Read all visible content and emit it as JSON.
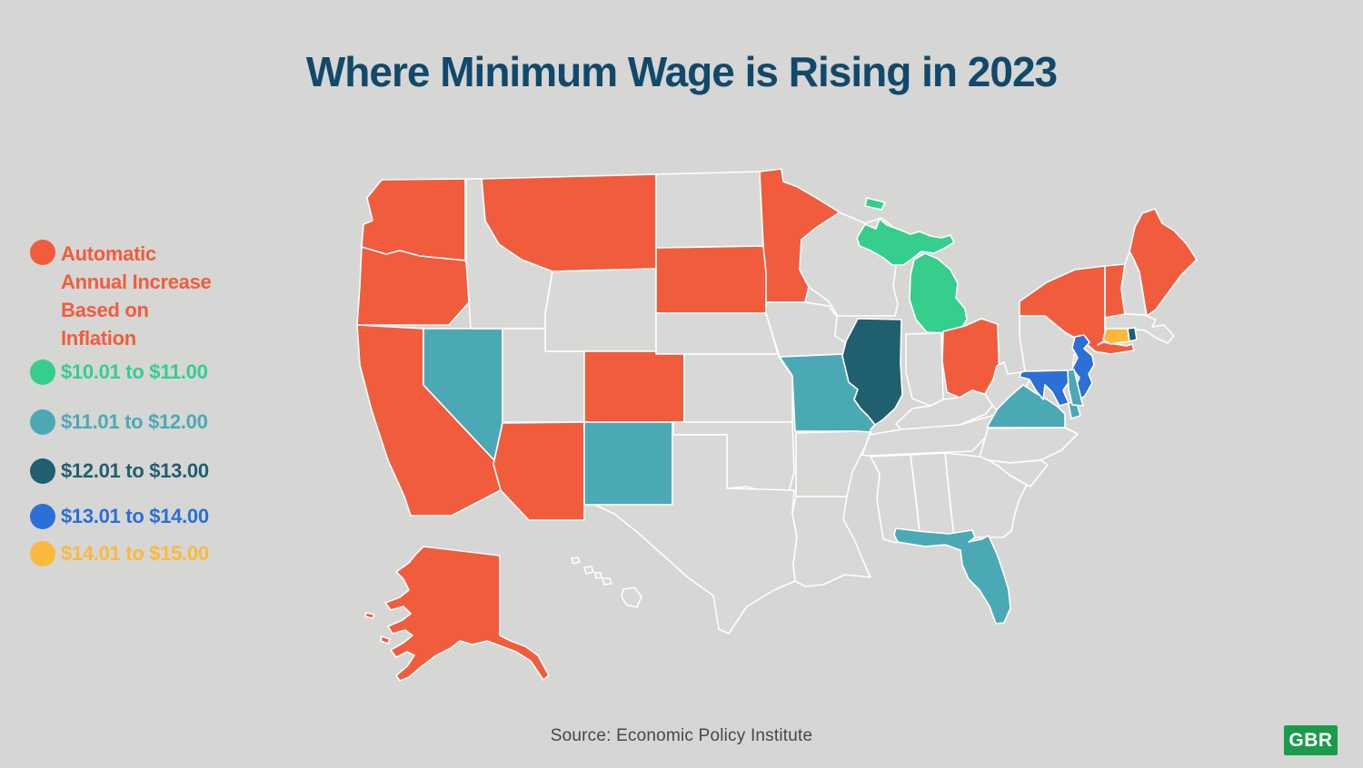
{
  "title": "Where Minimum Wage is Rising in 2023",
  "source": "Source: Economic Policy Institute",
  "logo_text": "GBR",
  "colors": {
    "background": "#D6D6D4",
    "title_text": "#11496B",
    "state_border": "#FFFFFF",
    "no_increase_state": "#D8D8D6",
    "source_text": "#474747",
    "logo_bg": "#1A9C4D",
    "logo_text": "#FFFFFF"
  },
  "chart_data": {
    "type": "choropleth",
    "region": "United States",
    "title": "Where Minimum Wage is Rising in 2023",
    "source": "Source: Economic Policy Institute",
    "legend_position": "left",
    "categories": [
      {
        "key": "auto",
        "label": "Automatic Annual Increase Based on Inflation",
        "lines": [
          "Automatic",
          "Annual Increase",
          "Based on",
          "Inflation"
        ],
        "color": "#F15C3D",
        "states": [
          "AK",
          "AZ",
          "CA",
          "CO",
          "ME",
          "MN",
          "MT",
          "NY",
          "OH",
          "OR",
          "SD",
          "VT",
          "WA"
        ]
      },
      {
        "key": "w10",
        "label": "$10.01 to $11.00",
        "color": "#35CE8D",
        "states": [
          "MI"
        ]
      },
      {
        "key": "w11",
        "label": "$11.01 to $12.00",
        "color": "#4BA9B6",
        "states": [
          "DE",
          "FL",
          "MO",
          "NM",
          "NV",
          "VA"
        ]
      },
      {
        "key": "w12",
        "label": "$12.01 to $13.00",
        "color": "#1F5F70",
        "states": [
          "IL",
          "RI"
        ]
      },
      {
        "key": "w13",
        "label": "$13.01 to $14.00",
        "color": "#2B6FD7",
        "states": [
          "MD",
          "NJ"
        ]
      },
      {
        "key": "w14",
        "label": "$14.01 to $15.00",
        "color": "#FBB93C",
        "states": [
          "CT"
        ]
      }
    ],
    "no_increase_states": [
      "AL",
      "AR",
      "GA",
      "HI",
      "IA",
      "ID",
      "IN",
      "KS",
      "KY",
      "LA",
      "MA",
      "MS",
      "NC",
      "ND",
      "NE",
      "NH",
      "OK",
      "PA",
      "SC",
      "TN",
      "TX",
      "UT",
      "WI",
      "WV",
      "WY"
    ]
  }
}
